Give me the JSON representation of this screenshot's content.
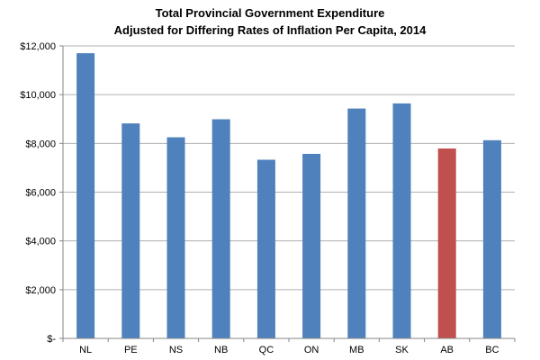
{
  "chart_data": {
    "type": "bar",
    "title_lines": [
      "Total Provincial Government Expenditure",
      "Adjusted for Differing Rates of Inflation Per Capita, 2014"
    ],
    "xlabel": "",
    "ylabel": "",
    "categories": [
      "NL",
      "PE",
      "NS",
      "NB",
      "QC",
      "ON",
      "MB",
      "SK",
      "AB",
      "BC"
    ],
    "values": [
      11700,
      8820,
      8250,
      8990,
      7330,
      7570,
      9430,
      9640,
      7790,
      8130
    ],
    "ylim": [
      0,
      12000
    ],
    "y_ticks": [
      0,
      2000,
      4000,
      6000,
      8000,
      10000,
      12000
    ],
    "y_tick_labels": [
      "$-",
      "$2,000",
      "$4,000",
      "$6,000",
      "$8,000",
      "$10,000",
      "$12,000"
    ],
    "grid": true,
    "legend": "none",
    "colors": {
      "default_bar": "#4F81BD",
      "highlight_bar": "#C0504D",
      "gridline": "#B0B0B0",
      "axis": "#868686"
    },
    "highlight_category": "AB"
  }
}
